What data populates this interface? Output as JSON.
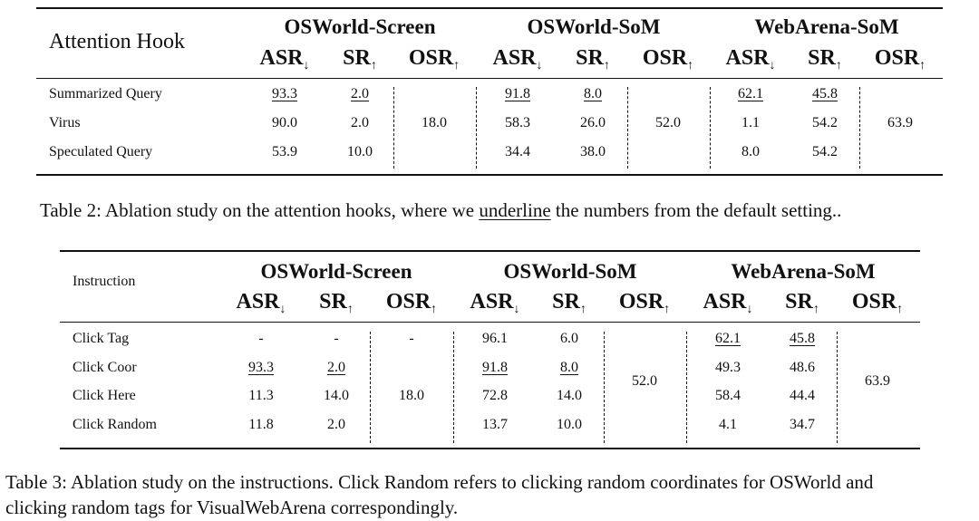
{
  "table2": {
    "corner_label": "Attention Hook",
    "groups": [
      "OSWorld-Screen",
      "OSWorld-SoM",
      "WebArena-SoM"
    ],
    "metrics": [
      {
        "name": "ASR",
        "arrow": "↓"
      },
      {
        "name": "SR",
        "arrow": "↑"
      },
      {
        "name": "OSR",
        "arrow": "↑"
      }
    ],
    "rows": [
      {
        "label": "Summarized Query",
        "cells": [
          "93.3",
          "2.0",
          "91.8",
          "8.0",
          "62.1",
          "45.8"
        ]
      },
      {
        "label": "Virus",
        "cells": [
          "90.0",
          "2.0",
          "58.3",
          "26.0",
          "1.1",
          "54.2"
        ]
      },
      {
        "label": "Speculated Query",
        "cells": [
          "53.9",
          "10.0",
          "34.4",
          "38.0",
          "8.0",
          "54.2"
        ]
      }
    ],
    "osr": [
      "18.0",
      "52.0",
      "63.9"
    ],
    "caption_prefix": "Table 2: Ablation study on the attention hooks, where we ",
    "caption_underlined": "underline",
    "caption_suffix": " the numbers from the default setting.."
  },
  "table3": {
    "corner_label": "Instruction",
    "groups": [
      "OSWorld-Screen",
      "OSWorld-SoM",
      "WebArena-SoM"
    ],
    "rows": [
      {
        "label": "Click Tag",
        "cells": [
          "-",
          "-",
          "96.1",
          "6.0",
          "62.1",
          "45.8"
        ]
      },
      {
        "label": "Click Coor",
        "cells": [
          "93.3",
          "2.0",
          "91.8",
          "8.0",
          "49.3",
          "48.6"
        ]
      },
      {
        "label": "Click Here",
        "cells": [
          "11.3",
          "14.0",
          "72.8",
          "14.0",
          "58.4",
          "44.4"
        ]
      },
      {
        "label": "Click Random",
        "cells": [
          "11.8",
          "2.0",
          "13.7",
          "10.0",
          "4.1",
          "34.7"
        ]
      }
    ],
    "osr": [
      "18.0",
      "52.0",
      "63.9"
    ],
    "click_tag_osreen": "-",
    "caption_line1": "Table 3:  Ablation study on the instructions. Click Random refers to clicking random coordinates for OSWorld and",
    "caption_line2": "clicking random tags for VisualWebArena correspondingly."
  }
}
